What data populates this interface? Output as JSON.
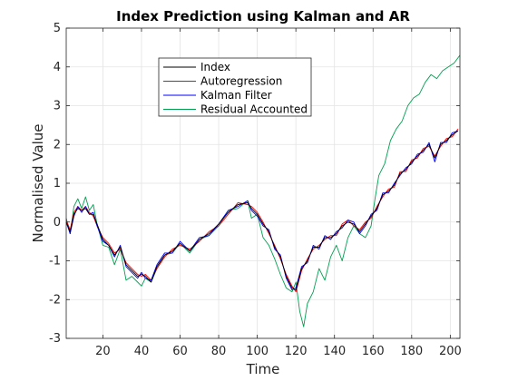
{
  "chart_data": {
    "type": "line",
    "title": "Index Prediction using Kalman and AR",
    "xlabel": "Time",
    "ylabel": "Normalised Value",
    "xlim": [
      1,
      205
    ],
    "ylim": [
      -3,
      5
    ],
    "xticks": [
      20,
      40,
      60,
      80,
      100,
      120,
      140,
      160,
      180,
      200
    ],
    "yticks": [
      -3,
      -2,
      -1,
      0,
      1,
      2,
      3,
      4,
      5
    ],
    "grid": true,
    "legend_position": "top-center",
    "series": [
      {
        "name": "Index",
        "color": "#000000",
        "x": [
          1,
          3,
          5,
          7,
          9,
          11,
          13,
          15,
          17,
          20,
          23,
          26,
          29,
          32,
          35,
          38,
          40,
          42,
          45,
          48,
          52,
          56,
          60,
          65,
          70,
          75,
          80,
          85,
          90,
          95,
          97,
          100,
          103,
          106,
          109,
          112,
          115,
          118,
          120,
          123,
          126,
          129,
          132,
          135,
          138,
          141,
          144,
          147,
          150,
          153,
          156,
          159,
          162,
          165,
          168,
          171,
          174,
          177,
          180,
          183,
          186,
          189,
          192,
          195,
          198,
          201,
          204
        ],
        "values": [
          0.0,
          -0.25,
          0.2,
          0.35,
          0.3,
          0.35,
          0.2,
          0.2,
          -0.05,
          -0.45,
          -0.6,
          -0.85,
          -0.65,
          -1.1,
          -1.25,
          -1.4,
          -1.35,
          -1.4,
          -1.55,
          -1.15,
          -0.85,
          -0.75,
          -0.55,
          -0.75,
          -0.45,
          -0.3,
          -0.05,
          0.25,
          0.45,
          0.5,
          0.35,
          0.2,
          -0.05,
          -0.25,
          -0.65,
          -0.9,
          -1.4,
          -1.7,
          -1.75,
          -1.2,
          -1.0,
          -0.65,
          -0.65,
          -0.4,
          -0.4,
          -0.3,
          -0.1,
          0.0,
          -0.05,
          -0.25,
          -0.05,
          0.15,
          0.35,
          0.7,
          0.8,
          0.95,
          1.25,
          1.35,
          1.55,
          1.7,
          1.85,
          2.0,
          1.65,
          2.0,
          2.1,
          2.25,
          2.35
        ]
      },
      {
        "name": "Autoregression",
        "color": "#ff0000",
        "x": [
          1,
          3,
          5,
          7,
          9,
          11,
          13,
          15,
          17,
          20,
          23,
          26,
          29,
          32,
          35,
          38,
          40,
          42,
          45,
          48,
          52,
          56,
          60,
          65,
          70,
          75,
          80,
          85,
          90,
          95,
          97,
          100,
          103,
          106,
          109,
          112,
          115,
          118,
          120,
          123,
          126,
          129,
          132,
          135,
          138,
          141,
          144,
          147,
          150,
          153,
          156,
          159,
          162,
          165,
          168,
          171,
          174,
          177,
          180,
          183,
          186,
          189,
          192,
          195,
          198,
          201,
          204
        ],
        "values": [
          0.05,
          -0.2,
          0.25,
          0.4,
          0.3,
          0.4,
          0.25,
          0.15,
          -0.1,
          -0.4,
          -0.55,
          -0.8,
          -0.7,
          -1.05,
          -1.2,
          -1.35,
          -1.4,
          -1.35,
          -1.5,
          -1.2,
          -0.9,
          -0.7,
          -0.6,
          -0.7,
          -0.5,
          -0.25,
          -0.1,
          0.2,
          0.5,
          0.45,
          0.4,
          0.25,
          0.0,
          -0.3,
          -0.6,
          -0.95,
          -1.35,
          -1.65,
          -1.8,
          -1.25,
          -0.95,
          -0.7,
          -0.6,
          -0.45,
          -0.35,
          -0.35,
          -0.05,
          0.05,
          -0.1,
          -0.2,
          0.0,
          0.1,
          0.4,
          0.65,
          0.85,
          0.9,
          1.3,
          1.3,
          1.6,
          1.65,
          1.9,
          1.95,
          1.7,
          1.95,
          2.15,
          2.2,
          2.4
        ]
      },
      {
        "name": "Kalman Filter",
        "color": "#0000ff",
        "x": [
          1,
          3,
          5,
          7,
          9,
          11,
          13,
          15,
          17,
          20,
          23,
          26,
          29,
          32,
          35,
          38,
          40,
          42,
          45,
          48,
          52,
          56,
          60,
          65,
          70,
          75,
          80,
          85,
          90,
          95,
          97,
          100,
          103,
          106,
          109,
          112,
          115,
          118,
          120,
          123,
          126,
          129,
          132,
          135,
          138,
          141,
          144,
          147,
          150,
          153,
          156,
          159,
          162,
          165,
          168,
          171,
          174,
          177,
          180,
          183,
          186,
          189,
          192,
          195,
          198,
          201,
          204
        ],
        "values": [
          0.0,
          -0.3,
          0.15,
          0.4,
          0.25,
          0.4,
          0.2,
          0.25,
          -0.1,
          -0.5,
          -0.6,
          -0.9,
          -0.6,
          -1.15,
          -1.3,
          -1.45,
          -1.3,
          -1.45,
          -1.5,
          -1.1,
          -0.8,
          -0.8,
          -0.5,
          -0.75,
          -0.4,
          -0.35,
          -0.05,
          0.3,
          0.4,
          0.55,
          0.3,
          0.15,
          -0.1,
          -0.2,
          -0.7,
          -0.85,
          -1.45,
          -1.75,
          -1.7,
          -1.15,
          -1.05,
          -0.6,
          -0.7,
          -0.35,
          -0.45,
          -0.25,
          -0.15,
          0.05,
          0.0,
          -0.3,
          -0.1,
          0.2,
          0.3,
          0.75,
          0.75,
          1.0,
          1.2,
          1.4,
          1.5,
          1.75,
          1.8,
          2.05,
          1.55,
          2.05,
          2.05,
          2.3,
          2.35
        ]
      },
      {
        "name": "Residual Accounted",
        "color": "#00a050",
        "x": [
          1,
          3,
          5,
          7,
          9,
          11,
          13,
          15,
          17,
          20,
          23,
          26,
          29,
          32,
          35,
          38,
          40,
          42,
          45,
          48,
          52,
          56,
          60,
          65,
          70,
          75,
          80,
          85,
          90,
          95,
          97,
          100,
          103,
          106,
          109,
          112,
          115,
          118,
          120,
          122,
          124,
          126,
          129,
          132,
          135,
          138,
          141,
          144,
          147,
          150,
          153,
          156,
          159,
          161,
          163,
          166,
          169,
          172,
          175,
          178,
          181,
          184,
          187,
          190,
          193,
          196,
          199,
          202,
          205
        ],
        "values": [
          0.1,
          -0.3,
          0.4,
          0.6,
          0.35,
          0.65,
          0.3,
          0.45,
          -0.05,
          -0.6,
          -0.65,
          -1.1,
          -0.7,
          -1.5,
          -1.4,
          -1.55,
          -1.65,
          -1.45,
          -1.55,
          -1.2,
          -0.85,
          -0.8,
          -0.55,
          -0.8,
          -0.45,
          -0.35,
          -0.1,
          0.3,
          0.35,
          0.55,
          0.1,
          0.2,
          -0.4,
          -0.6,
          -0.95,
          -1.35,
          -1.7,
          -1.8,
          -1.55,
          -2.3,
          -2.7,
          -2.1,
          -1.8,
          -1.2,
          -1.5,
          -0.9,
          -0.6,
          -1.0,
          -0.4,
          -0.1,
          -0.3,
          -0.4,
          -0.1,
          0.6,
          1.2,
          1.5,
          2.1,
          2.4,
          2.6,
          3.0,
          3.2,
          3.3,
          3.6,
          3.8,
          3.7,
          3.9,
          4.0,
          4.1,
          4.3
        ]
      }
    ]
  }
}
